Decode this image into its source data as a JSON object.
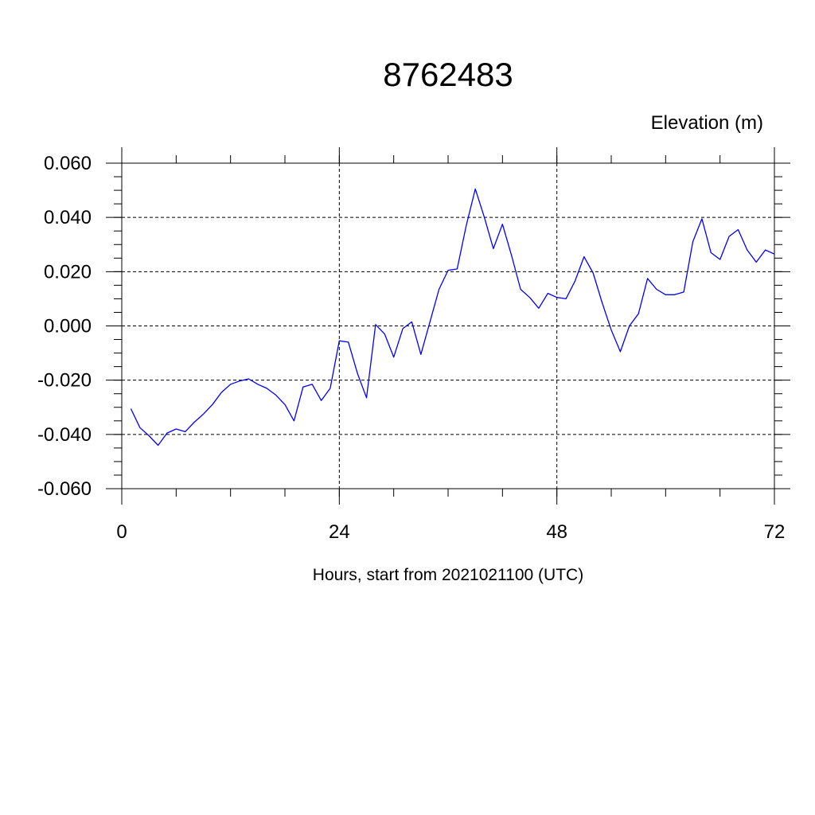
{
  "chart_data": {
    "type": "line",
    "title": "8762483",
    "ylabel": "Elevation (m)",
    "xlabel": "Hours, start from 2021021100 (UTC)",
    "xlim": [
      0,
      72
    ],
    "ylim": [
      -0.06,
      0.06
    ],
    "x_ticks": [
      0,
      24,
      48,
      72
    ],
    "x_tick_labels": [
      "0",
      "24",
      "48",
      "72"
    ],
    "y_ticks": [
      -0.06,
      -0.04,
      -0.02,
      0.0,
      0.02,
      0.04,
      0.06
    ],
    "y_tick_labels": [
      "-0.060",
      "-0.040",
      "-0.020",
      "0.000",
      "0.020",
      "0.040",
      "0.060"
    ],
    "grid": true,
    "line_color": "#0000ff",
    "series": [
      {
        "x": [
          1,
          2,
          3,
          4,
          5,
          6,
          7,
          8,
          9,
          10,
          11,
          12,
          13,
          14,
          15,
          16,
          17,
          18,
          19,
          20,
          21,
          22,
          23,
          24,
          25,
          26,
          27,
          28,
          29,
          30,
          31,
          32,
          33,
          34,
          35,
          36,
          37,
          38,
          39,
          40,
          41,
          42,
          43,
          44,
          45,
          46,
          47,
          48,
          49,
          50,
          51,
          52,
          53,
          54,
          55,
          56,
          57,
          58,
          59,
          60,
          61,
          62,
          63,
          64,
          65,
          66,
          67,
          68,
          69,
          70,
          71,
          72
        ],
        "y": [
          -0.0305,
          -0.0375,
          -0.0405,
          -0.044,
          -0.0395,
          -0.038,
          -0.039,
          -0.0355,
          -0.0325,
          -0.029,
          -0.0245,
          -0.0215,
          -0.0203,
          -0.0195,
          -0.0215,
          -0.023,
          -0.0255,
          -0.029,
          -0.035,
          -0.0225,
          -0.0215,
          -0.0275,
          -0.023,
          -0.0055,
          -0.006,
          -0.0175,
          -0.0265,
          0.0005,
          -0.003,
          -0.0115,
          -0.001,
          0.0015,
          -0.0105,
          0.0015,
          0.0135,
          0.0205,
          0.021,
          0.037,
          0.0505,
          0.04,
          0.0285,
          0.0375,
          0.026,
          0.0135,
          0.0105,
          0.0065,
          0.012,
          0.0105,
          0.01,
          0.0165,
          0.0255,
          0.0195,
          0.0085,
          -0.0015,
          -0.0095,
          0.0,
          0.0045,
          0.0175,
          0.0135,
          0.0115,
          0.0115,
          0.0125,
          0.031,
          0.0395,
          0.027,
          0.0245,
          0.033,
          0.0355,
          0.028,
          0.0235,
          0.028,
          0.0265
        ]
      }
    ]
  }
}
